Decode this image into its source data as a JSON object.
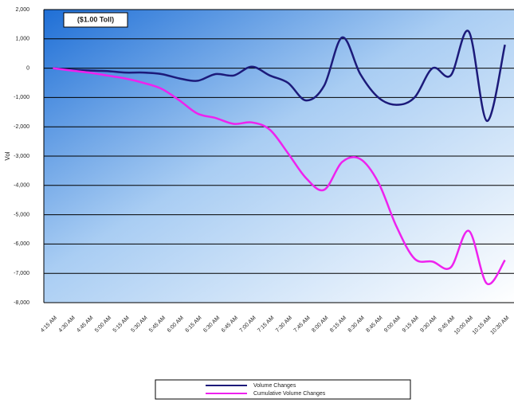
{
  "chart_data": {
    "type": "line",
    "annotation": "($1.00 Toll)",
    "y_label": "Vol",
    "categories": [
      "4:15 AM",
      "4:30 AM",
      "4:45 AM",
      "5:00 AM",
      "5:15 AM",
      "5:30 AM",
      "5:45 AM",
      "6:00 AM",
      "6:15 AM",
      "6:30 AM",
      "6:45 AM",
      "7:00 AM",
      "7:15 AM",
      "7:30 AM",
      "7:45 AM",
      "8:00 AM",
      "8:15 AM",
      "8:30 AM",
      "8:45 AM",
      "9:00 AM",
      "9:15 AM",
      "9:30 AM",
      "9:45 AM",
      "10:00 AM",
      "10:15 AM",
      "10:30 AM"
    ],
    "series": [
      {
        "name": "Volume Changes",
        "color": "#1c1a7a",
        "values": [
          0,
          -50,
          -80,
          -100,
          -150,
          -150,
          -200,
          -350,
          -430,
          -200,
          -250,
          50,
          -250,
          -500,
          -1100,
          -600,
          1050,
          -200,
          -1000,
          -1250,
          -1000,
          0,
          -250,
          1250,
          -1800,
          800
        ]
      },
      {
        "name": "Cumulative Volume Changes",
        "color": "#ee22ee",
        "values": [
          0,
          -80,
          -150,
          -250,
          -350,
          -500,
          -700,
          -1100,
          -1550,
          -1700,
          -1900,
          -1850,
          -2100,
          -2900,
          -3750,
          -4150,
          -3200,
          -3100,
          -3900,
          -5400,
          -6500,
          -6600,
          -6800,
          -5550,
          -7350,
          -6550
        ]
      }
    ],
    "ylim": [
      -8000,
      2000
    ],
    "yticks": [
      {
        "value": -8000,
        "label": "-8,000"
      },
      {
        "value": -7000,
        "label": "-7,000"
      },
      {
        "value": -6000,
        "label": "-6,000"
      },
      {
        "value": -5000,
        "label": "-5,000"
      },
      {
        "value": -4000,
        "label": "-4,000"
      },
      {
        "value": -3000,
        "label": "-3,000"
      },
      {
        "value": -2000,
        "label": "-2,000"
      },
      {
        "value": -1000,
        "label": "-1,000"
      },
      0,
      {
        "value": 1000,
        "label": "1,000"
      },
      {
        "value": 2000,
        "label": "2,000"
      }
    ],
    "grid": true,
    "legend": "bottom"
  }
}
